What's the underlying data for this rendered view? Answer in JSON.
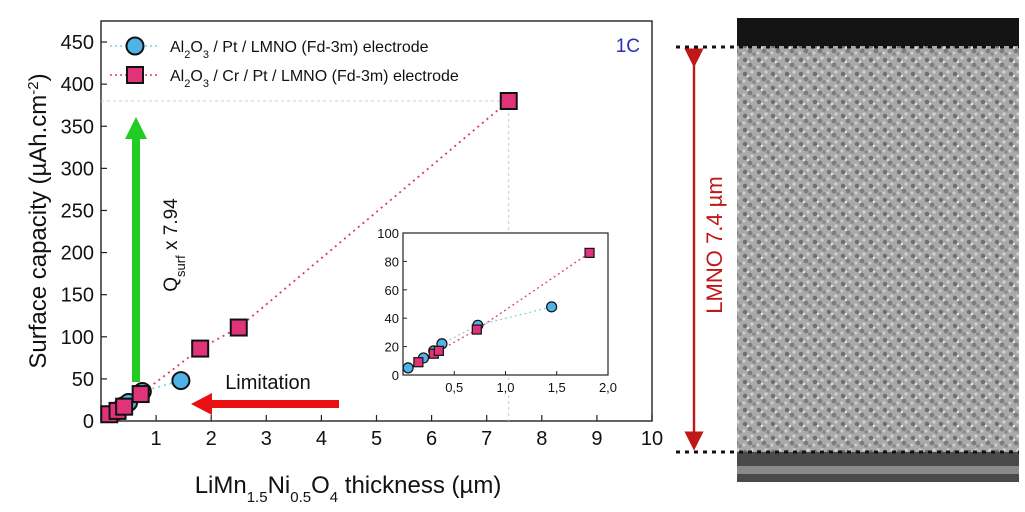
{
  "chart_data": [
    {
      "type": "scatter",
      "xlabel": "LiMn1.5Ni0.5O4 thickness (µm)",
      "xlabel_parts": [
        "LiMn",
        "1.5",
        "Ni",
        "0.5",
        "O",
        "4",
        " thickness (µm)"
      ],
      "ylabel": "Surface capacity (µAh.cm-2)",
      "ylabel_parts": [
        "Surface capacity (µAh.cm",
        "-2",
        ")"
      ],
      "xlim": [
        0,
        10
      ],
      "ylim": [
        0,
        475
      ],
      "x_ticks": [
        "1",
        "2",
        "3",
        "4",
        "5",
        "6",
        "7",
        "8",
        "9",
        "10"
      ],
      "y_ticks": [
        "0",
        "50",
        "100",
        "150",
        "200",
        "250",
        "300",
        "350",
        "400",
        "450"
      ],
      "corner_label": "1C",
      "legend_position": "top-left",
      "series": [
        {
          "name": "Al2O3 / Pt / LMNO (Fd-3m) electrode",
          "name_parts": [
            "Al",
            "2",
            "O",
            "3",
            " / Pt / LMNO (Fd-3m) electrode"
          ],
          "marker": "circle",
          "color": "#4fb3e8",
          "line_color": "#7fd0e0",
          "x": [
            0.3,
            0.4,
            0.5,
            0.75,
            1.45
          ],
          "y": [
            12,
            18,
            22,
            35,
            48
          ]
        },
        {
          "name": "Al2O3 / Cr / Pt / LMNO (Fd-3m) electrode",
          "name_parts": [
            "Al",
            "2",
            "O",
            "3",
            " / Cr / Pt / LMNO (Fd-3m) electrode"
          ],
          "marker": "square",
          "color": "#e0337a",
          "line_color": "#e0337a",
          "x": [
            0.15,
            0.3,
            0.42,
            0.72,
            1.8,
            2.5,
            7.4
          ],
          "y": [
            8,
            12,
            17,
            32,
            86,
            111,
            380
          ]
        }
      ],
      "annotations": {
        "arrow_up_label": "Qsurf x 7.94",
        "arrow_up_label_parts": [
          "Q",
          "surf",
          " x 7.94"
        ],
        "arrow_up_color": "#22cc22",
        "arrow_left_label": "Limitation",
        "arrow_left_color": "#e81010"
      }
    },
    {
      "type": "scatter",
      "role": "inset",
      "xlim": [
        0,
        2.0
      ],
      "ylim": [
        0,
        100
      ],
      "x_ticks": [
        "0,5",
        "1,0",
        "1,5",
        "2,0"
      ],
      "y_ticks": [
        "0",
        "20",
        "40",
        "60",
        "80",
        "100"
      ],
      "series": [
        {
          "marker": "circle",
          "color": "#4fb3e8",
          "x": [
            0.05,
            0.2,
            0.3,
            0.38,
            0.73,
            1.45
          ],
          "y": [
            5,
            12,
            17,
            22,
            35,
            48
          ]
        },
        {
          "marker": "square",
          "color": "#e0337a",
          "x": [
            0.15,
            0.3,
            0.35,
            0.72,
            1.82
          ],
          "y": [
            9,
            15,
            17,
            32,
            86
          ]
        }
      ]
    }
  ],
  "sem_image": {
    "scale_label": "LMNO 7.4 µm",
    "scale_color": "#c01818"
  }
}
